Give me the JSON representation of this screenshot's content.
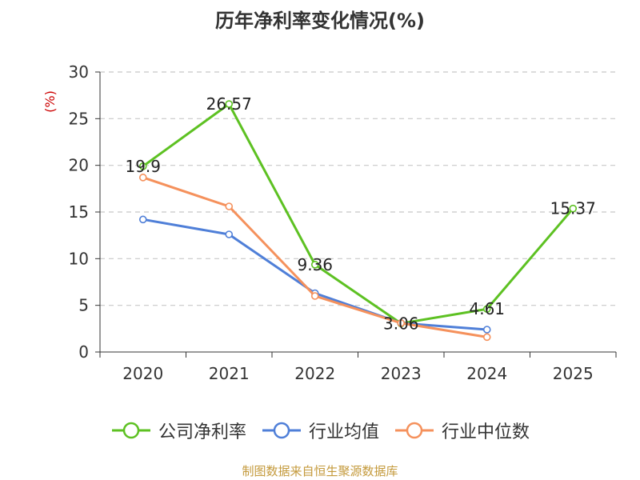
{
  "chart_data": {
    "type": "line",
    "title": "历年净利率变化情况(%)",
    "ylabel": "(%)",
    "xlabel": "",
    "categories": [
      "2020",
      "2021",
      "2022",
      "2023",
      "2024",
      "2025"
    ],
    "ylim": [
      0,
      30
    ],
    "yticks": [
      0,
      5,
      10,
      15,
      20,
      25,
      30
    ],
    "grid": true,
    "legend_position": "bottom",
    "series": [
      {
        "name": "公司净利率",
        "color": "#5dc122",
        "values": [
          19.9,
          26.57,
          9.36,
          3.06,
          4.61,
          15.37
        ],
        "labels": [
          "19.9",
          "26.57",
          "9.36",
          "3.06",
          "4.61",
          "15.37"
        ]
      },
      {
        "name": "行业均值",
        "color": "#4f7fd8",
        "values": [
          14.2,
          12.6,
          6.3,
          3.1,
          2.4,
          null
        ],
        "labels": []
      },
      {
        "name": "行业中位数",
        "color": "#f5915c",
        "values": [
          18.7,
          15.6,
          6.0,
          3.1,
          1.6,
          null
        ],
        "labels": []
      }
    ]
  },
  "source_text": "制图数据来自恒生聚源数据库"
}
